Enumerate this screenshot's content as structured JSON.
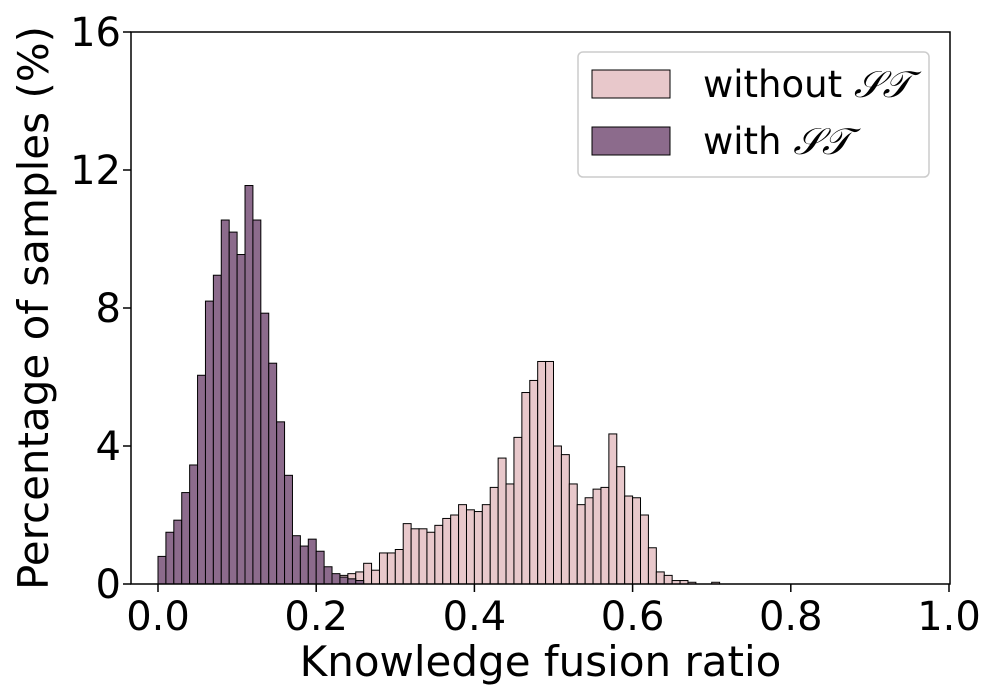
{
  "chart_data": {
    "type": "bar",
    "subtype": "histogram",
    "title": "",
    "xlabel": "Knowledge fusion ratio",
    "ylabel": "Percentage of samples (%)",
    "xlim": [
      0.0,
      1.0
    ],
    "ylim": [
      0,
      16
    ],
    "x_ticks": [
      "0.0",
      "0.2",
      "0.4",
      "0.6",
      "0.8",
      "1.0"
    ],
    "y_ticks": [
      "0",
      "4",
      "8",
      "12",
      "16"
    ],
    "bin_width": 0.01,
    "grid": false,
    "legend_position": "top-right",
    "series": [
      {
        "name": "without ST",
        "label_text": "without ",
        "label_math": "𝒮𝒯",
        "color": "#e8c8cb",
        "bins_start": 0.0,
        "values": [
          0,
          0,
          0,
          0,
          0,
          0,
          0,
          0,
          0,
          0,
          0,
          0,
          0,
          0,
          0,
          0,
          0,
          0.04,
          0.06,
          0.1,
          0.15,
          0.2,
          0.2,
          0.25,
          0.3,
          0.35,
          0.6,
          0.4,
          0.9,
          0.9,
          1.0,
          1.75,
          1.6,
          1.6,
          1.5,
          1.7,
          1.9,
          2.0,
          2.3,
          2.15,
          2.1,
          2.3,
          2.8,
          3.65,
          2.9,
          4.25,
          5.55,
          5.9,
          6.45,
          6.45,
          4.0,
          3.75,
          2.9,
          2.3,
          2.5,
          2.75,
          2.8,
          4.35,
          3.4,
          2.55,
          2.5,
          2.0,
          1.05,
          0.35,
          0.25,
          0.1,
          0.1,
          0.05,
          0,
          0,
          0.05,
          0,
          0,
          0,
          0,
          0,
          0,
          0,
          0,
          0,
          0,
          0,
          0,
          0,
          0,
          0,
          0,
          0,
          0,
          0,
          0,
          0,
          0,
          0,
          0,
          0,
          0,
          0,
          0,
          0
        ]
      },
      {
        "name": "with ST",
        "label_text": "with ",
        "label_math": "𝒮𝒯",
        "color": "#8c6b8c",
        "bins_start": 0.0,
        "values": [
          0.8,
          1.5,
          1.85,
          2.65,
          3.45,
          6.05,
          8.2,
          8.95,
          10.55,
          10.2,
          9.55,
          11.55,
          10.55,
          7.85,
          6.4,
          4.7,
          3.15,
          1.4,
          1.1,
          1.3,
          0.95,
          0.5,
          0.3,
          0.2,
          0.15,
          0.1,
          0,
          0,
          0,
          0
        ]
      }
    ]
  }
}
